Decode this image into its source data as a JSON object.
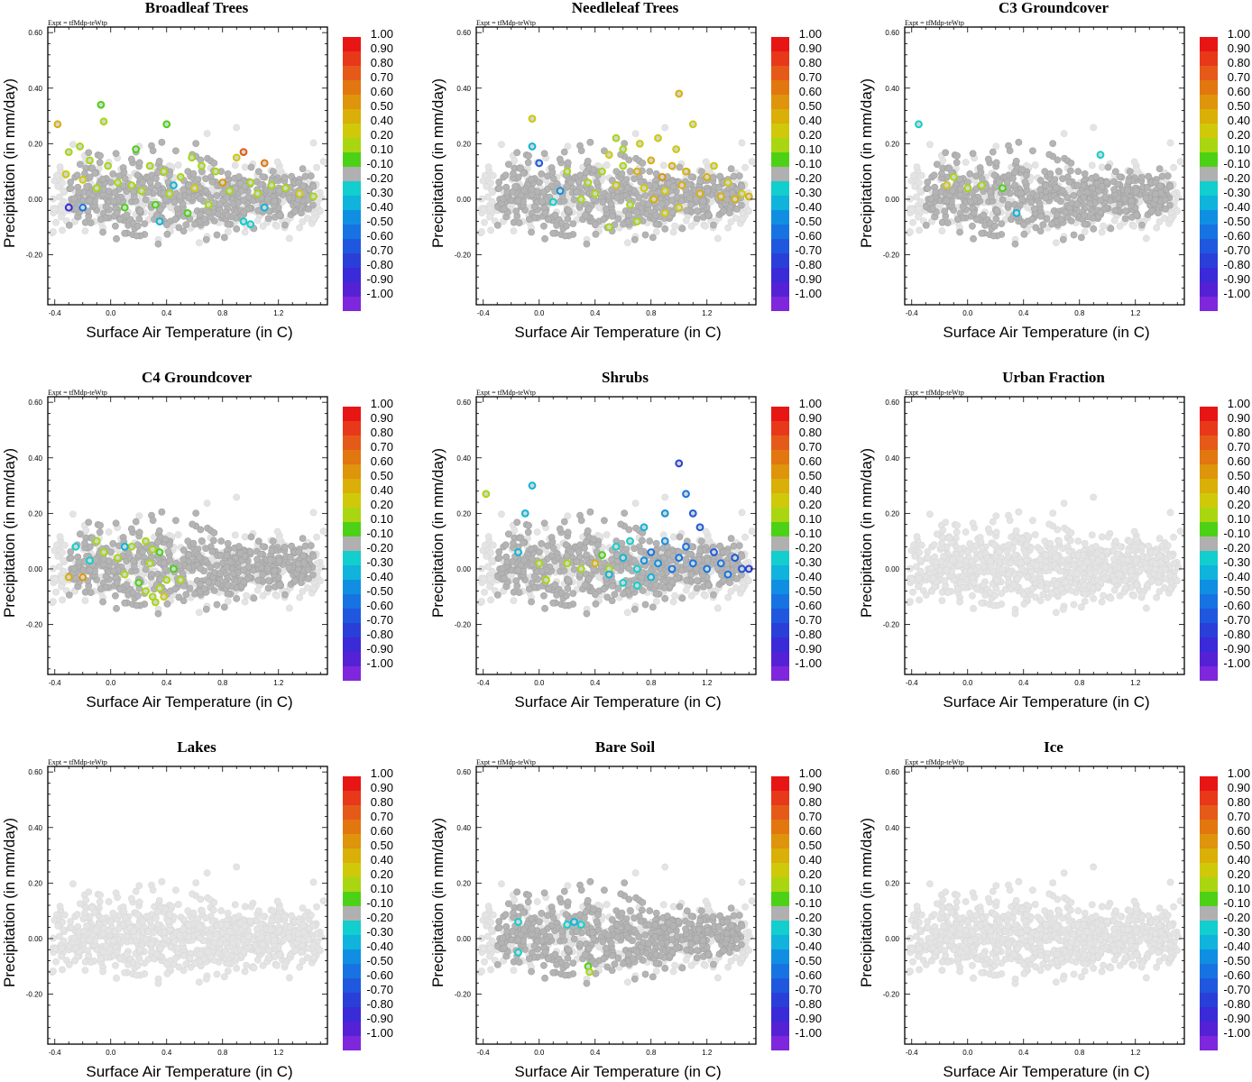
{
  "figure": {
    "expt_label": "Expt = tfMdp-teWtp",
    "xlabel": "Surface Air Temperature (in C)",
    "ylabel": "Precipitation (in mm/day)"
  },
  "colorbar": {
    "labels": [
      "1.00",
      "0.90",
      "0.80",
      "0.70",
      "0.60",
      "0.50",
      "0.40",
      "0.20",
      "0.10",
      "-0.10",
      "-0.20",
      "-0.30",
      "-0.40",
      "-0.50",
      "-0.60",
      "-0.70",
      "-0.80",
      "-0.90",
      "-1.00"
    ],
    "colors": [
      "#e81515",
      "#e8381a",
      "#e55a18",
      "#e2760f",
      "#de940b",
      "#d9af08",
      "#cfc90a",
      "#a9d611",
      "#4dd116",
      "#b0b0b0",
      "#12cece",
      "#0fb3dc",
      "#108fe2",
      "#1873e2",
      "#1f58de",
      "#2a3fd8",
      "#3a2ad8",
      "#5521d4",
      "#7e27dc"
    ]
  },
  "chart_data": [
    {
      "type": "scatter",
      "title": "Broadleaf Trees",
      "xlabel": "Surface Air Temperature (in C)",
      "ylabel": "Precipitation (in mm/day)",
      "xlim": [
        -0.45,
        1.55
      ],
      "ylim": [
        -0.38,
        0.62
      ],
      "xticks": [
        "-0.4",
        "0.0",
        "0.4",
        "0.8",
        "1.2"
      ],
      "yticks": [
        "0.60",
        "0.40",
        "0.20",
        "0.00",
        "-0.20"
      ],
      "colored_points": [
        [
          -0.38,
          0.27,
          0.45
        ],
        [
          -0.32,
          0.09,
          0.3
        ],
        [
          -0.3,
          0.17,
          0.15
        ],
        [
          -0.22,
          0.19,
          0.2
        ],
        [
          -0.2,
          0.07,
          0.3
        ],
        [
          -0.15,
          0.14,
          0.2
        ],
        [
          -0.1,
          0.04,
          0.15
        ],
        [
          -0.07,
          0.34,
          0.1
        ],
        [
          -0.05,
          0.28,
          0.25
        ],
        [
          -0.02,
          0.12,
          0.15
        ],
        [
          0.05,
          0.06,
          0.2
        ],
        [
          0.1,
          -0.03,
          0.1
        ],
        [
          0.15,
          0.05,
          0.2
        ],
        [
          0.18,
          0.18,
          0.1
        ],
        [
          0.22,
          0.03,
          0.15
        ],
        [
          0.28,
          0.12,
          0.2
        ],
        [
          0.32,
          -0.02,
          0.1
        ],
        [
          0.38,
          0.1,
          0.2
        ],
        [
          0.4,
          0.27,
          0.1
        ],
        [
          0.42,
          0.02,
          0.15
        ],
        [
          0.5,
          0.08,
          0.2
        ],
        [
          0.55,
          -0.05,
          0.1
        ],
        [
          0.58,
          0.15,
          0.2
        ],
        [
          0.6,
          0.04,
          0.3
        ],
        [
          0.65,
          0.12,
          0.15
        ],
        [
          0.7,
          -0.02,
          0.2
        ],
        [
          0.75,
          0.1,
          0.25
        ],
        [
          0.8,
          0.06,
          0.6
        ],
        [
          0.85,
          0.03,
          0.2
        ],
        [
          0.9,
          0.15,
          0.3
        ],
        [
          0.95,
          0.17,
          0.75
        ],
        [
          1.0,
          0.06,
          0.2
        ],
        [
          1.05,
          0.02,
          0.15
        ],
        [
          1.1,
          0.13,
          0.65
        ],
        [
          1.15,
          0.05,
          0.2
        ],
        [
          1.25,
          0.04,
          0.15
        ],
        [
          1.35,
          0.02,
          0.3
        ],
        [
          1.45,
          0.01,
          0.25
        ],
        [
          -0.3,
          -0.03,
          -0.8
        ],
        [
          -0.2,
          -0.03,
          -0.5
        ],
        [
          0.35,
          -0.08,
          -0.3
        ],
        [
          0.95,
          -0.08,
          -0.25
        ],
        [
          1.0,
          -0.09,
          -0.2
        ],
        [
          1.1,
          -0.03,
          -0.3
        ],
        [
          0.45,
          0.05,
          -0.3
        ]
      ]
    },
    {
      "type": "scatter",
      "title": "Needleleaf Trees",
      "xlabel": "Surface Air Temperature (in C)",
      "ylabel": "Precipitation (in mm/day)",
      "xlim": [
        -0.45,
        1.55
      ],
      "ylim": [
        -0.38,
        0.62
      ],
      "xticks": [
        "-0.4",
        "0.0",
        "0.4",
        "0.8",
        "1.2"
      ],
      "yticks": [
        "0.60",
        "0.40",
        "0.20",
        "0.00",
        "-0.20"
      ],
      "colored_points": [
        [
          -0.05,
          0.29,
          0.4
        ],
        [
          0.35,
          0.06,
          0.2
        ],
        [
          0.4,
          0.02,
          0.25
        ],
        [
          0.45,
          0.1,
          0.2
        ],
        [
          0.5,
          0.16,
          0.3
        ],
        [
          0.55,
          0.05,
          0.35
        ],
        [
          0.6,
          0.12,
          0.25
        ],
        [
          0.65,
          -0.02,
          0.2
        ],
        [
          0.7,
          0.1,
          0.45
        ],
        [
          0.72,
          0.2,
          0.3
        ],
        [
          0.75,
          0.04,
          0.4
        ],
        [
          0.8,
          0.14,
          0.5
        ],
        [
          0.82,
          0.0,
          0.45
        ],
        [
          0.85,
          0.22,
          0.3
        ],
        [
          0.88,
          0.08,
          0.55
        ],
        [
          0.9,
          0.03,
          0.4
        ],
        [
          0.95,
          0.12,
          0.5
        ],
        [
          0.98,
          0.18,
          0.35
        ],
        [
          1.0,
          0.38,
          0.5
        ],
        [
          1.02,
          0.05,
          0.5
        ],
        [
          1.05,
          0.1,
          0.45
        ],
        [
          1.1,
          0.27,
          0.4
        ],
        [
          1.15,
          0.02,
          0.45
        ],
        [
          1.2,
          0.08,
          0.5
        ],
        [
          1.25,
          0.12,
          0.4
        ],
        [
          1.3,
          0.01,
          0.45
        ],
        [
          1.35,
          0.06,
          0.4
        ],
        [
          1.4,
          0.0,
          0.45
        ],
        [
          1.45,
          0.02,
          0.4
        ],
        [
          1.5,
          0.01,
          0.45
        ],
        [
          0.3,
          0.0,
          0.2
        ],
        [
          0.5,
          -0.1,
          0.15
        ],
        [
          0.6,
          0.18,
          0.15
        ],
        [
          0.7,
          -0.08,
          0.2
        ],
        [
          0.9,
          -0.05,
          0.3
        ],
        [
          1.0,
          -0.03,
          0.35
        ],
        [
          0.2,
          0.1,
          0.15
        ],
        [
          0.55,
          0.22,
          0.2
        ],
        [
          -0.05,
          0.19,
          -0.3
        ],
        [
          0.1,
          -0.01,
          -0.2
        ],
        [
          0.0,
          0.13,
          -0.6
        ],
        [
          0.15,
          0.03,
          -0.4
        ]
      ]
    },
    {
      "type": "scatter",
      "title": "C3 Groundcover",
      "xlabel": "Surface Air Temperature (in C)",
      "ylabel": "Precipitation (in mm/day)",
      "xlim": [
        -0.45,
        1.55
      ],
      "ylim": [
        -0.38,
        0.62
      ],
      "xticks": [
        "-0.4",
        "0.0",
        "0.4",
        "0.8",
        "1.2"
      ],
      "yticks": [
        "0.60",
        "0.40",
        "0.20",
        "0.00",
        "-0.20"
      ],
      "colored_points": [
        [
          -0.15,
          0.05,
          0.3
        ],
        [
          -0.1,
          0.08,
          0.2
        ],
        [
          0.0,
          0.04,
          0.15
        ],
        [
          0.1,
          0.05,
          0.2
        ],
        [
          0.25,
          0.04,
          0.1
        ],
        [
          0.35,
          -0.05,
          -0.3
        ],
        [
          -0.35,
          0.27,
          -0.2
        ],
        [
          0.95,
          0.16,
          -0.2
        ]
      ]
    },
    {
      "type": "scatter",
      "title": "C4 Groundcover",
      "xlabel": "Surface Air Temperature (in C)",
      "ylabel": "Precipitation (in mm/day)",
      "xlim": [
        -0.45,
        1.55
      ],
      "ylim": [
        -0.38,
        0.62
      ],
      "xticks": [
        "-0.4",
        "0.0",
        "0.4",
        "0.8",
        "1.2"
      ],
      "yticks": [
        "0.60",
        "0.40",
        "0.20",
        "0.00",
        "-0.20"
      ],
      "colored_points": [
        [
          -0.3,
          -0.03,
          0.5
        ],
        [
          -0.2,
          -0.03,
          0.6
        ],
        [
          -0.1,
          0.1,
          0.2
        ],
        [
          -0.05,
          0.06,
          0.15
        ],
        [
          0.05,
          0.04,
          0.2
        ],
        [
          0.1,
          -0.02,
          0.15
        ],
        [
          0.15,
          0.08,
          0.2
        ],
        [
          0.2,
          -0.05,
          0.1
        ],
        [
          0.25,
          -0.08,
          0.2
        ],
        [
          0.28,
          0.02,
          0.15
        ],
        [
          0.3,
          -0.1,
          0.2
        ],
        [
          0.32,
          -0.12,
          0.25
        ],
        [
          0.35,
          -0.07,
          0.2
        ],
        [
          0.38,
          -0.1,
          0.3
        ],
        [
          0.4,
          -0.04,
          0.15
        ],
        [
          0.45,
          0.0,
          0.1
        ],
        [
          0.5,
          -0.04,
          0.15
        ],
        [
          0.25,
          0.1,
          0.2
        ],
        [
          0.3,
          0.07,
          0.25
        ],
        [
          0.35,
          0.06,
          0.1
        ],
        [
          -0.25,
          0.08,
          -0.2
        ],
        [
          -0.15,
          0.03,
          -0.2
        ],
        [
          0.1,
          0.08,
          -0.3
        ]
      ]
    },
    {
      "type": "scatter",
      "title": "Shrubs",
      "xlabel": "Surface Air Temperature (in C)",
      "ylabel": "Precipitation (in mm/day)",
      "xlim": [
        -0.45,
        1.55
      ],
      "ylim": [
        -0.38,
        0.62
      ],
      "xticks": [
        "-0.4",
        "0.0",
        "0.4",
        "0.8",
        "1.2"
      ],
      "yticks": [
        "0.60",
        "0.40",
        "0.20",
        "0.00",
        "-0.20"
      ],
      "colored_points": [
        [
          -0.38,
          0.27,
          0.2
        ],
        [
          -0.1,
          0.2,
          -0.3
        ],
        [
          -0.15,
          0.06,
          -0.3
        ],
        [
          -0.05,
          0.3,
          -0.3
        ],
        [
          0.0,
          0.02,
          0.15
        ],
        [
          0.05,
          -0.04,
          0.2
        ],
        [
          0.2,
          0.02,
          0.2
        ],
        [
          0.3,
          0.0,
          0.15
        ],
        [
          0.4,
          0.02,
          0.5
        ],
        [
          0.5,
          0.0,
          0.15
        ],
        [
          0.55,
          0.08,
          -0.2
        ],
        [
          0.6,
          0.04,
          -0.3
        ],
        [
          0.65,
          0.1,
          -0.25
        ],
        [
          0.7,
          0.0,
          -0.2
        ],
        [
          0.75,
          0.15,
          -0.3
        ],
        [
          0.8,
          0.06,
          -0.5
        ],
        [
          0.85,
          0.02,
          -0.4
        ],
        [
          0.9,
          0.1,
          -0.45
        ],
        [
          0.95,
          0.0,
          -0.5
        ],
        [
          1.0,
          0.38,
          -0.7
        ],
        [
          1.0,
          0.04,
          -0.5
        ],
        [
          1.05,
          0.08,
          -0.55
        ],
        [
          1.1,
          0.02,
          -0.5
        ],
        [
          1.15,
          0.15,
          -0.6
        ],
        [
          1.2,
          0.0,
          -0.5
        ],
        [
          1.25,
          0.06,
          -0.6
        ],
        [
          1.3,
          0.02,
          -0.55
        ],
        [
          1.35,
          -0.02,
          -0.5
        ],
        [
          1.4,
          0.04,
          -0.6
        ],
        [
          1.45,
          0.0,
          -0.65
        ],
        [
          1.5,
          0.0,
          -0.7
        ],
        [
          1.1,
          0.2,
          -0.65
        ],
        [
          1.05,
          0.27,
          -0.5
        ],
        [
          0.9,
          0.2,
          -0.4
        ],
        [
          0.8,
          -0.03,
          -0.3
        ],
        [
          0.7,
          -0.06,
          -0.25
        ],
        [
          0.6,
          -0.05,
          -0.2
        ],
        [
          0.5,
          -0.02,
          -0.3
        ],
        [
          0.45,
          0.05,
          0.1
        ],
        [
          0.75,
          0.03,
          -0.45
        ]
      ]
    },
    {
      "type": "scatter",
      "title": "Urban Fraction",
      "xlabel": "Surface Air Temperature (in C)",
      "ylabel": "Precipitation (in mm/day)",
      "xlim": [
        -0.45,
        1.55
      ],
      "ylim": [
        -0.38,
        0.62
      ],
      "xticks": [
        "-0.4",
        "0.0",
        "0.4",
        "0.8",
        "1.2"
      ],
      "yticks": [
        "0.60",
        "0.40",
        "0.20",
        "0.00",
        "-0.20"
      ],
      "colored_points": []
    },
    {
      "type": "scatter",
      "title": "Lakes",
      "xlabel": "Surface Air Temperature (in C)",
      "ylabel": "Precipitation (in mm/day)",
      "xlim": [
        -0.45,
        1.55
      ],
      "ylim": [
        -0.38,
        0.62
      ],
      "xticks": [
        "-0.4",
        "0.0",
        "0.4",
        "0.8",
        "1.2"
      ],
      "yticks": [
        "0.60",
        "0.40",
        "0.20",
        "0.00",
        "-0.20"
      ],
      "colored_points": []
    },
    {
      "type": "scatter",
      "title": "Bare Soil",
      "xlabel": "Surface Air Temperature (in C)",
      "ylabel": "Precipitation (in mm/day)",
      "xlim": [
        -0.45,
        1.55
      ],
      "ylim": [
        -0.38,
        0.62
      ],
      "xticks": [
        "-0.4",
        "0.0",
        "0.4",
        "0.8",
        "1.2"
      ],
      "yticks": [
        "0.60",
        "0.40",
        "0.20",
        "0.00",
        "-0.20"
      ],
      "colored_points": [
        [
          -0.15,
          0.06,
          -0.2
        ],
        [
          -0.15,
          -0.05,
          -0.25
        ],
        [
          0.2,
          0.05,
          -0.2
        ],
        [
          0.25,
          0.06,
          -0.3
        ],
        [
          0.3,
          0.05,
          -0.2
        ],
        [
          0.35,
          -0.1,
          0.1
        ],
        [
          0.36,
          -0.12,
          0.15
        ]
      ]
    },
    {
      "type": "scatter",
      "title": "Ice",
      "xlabel": "Surface Air Temperature (in C)",
      "ylabel": "Precipitation (in mm/day)",
      "xlim": [
        -0.45,
        1.55
      ],
      "ylim": [
        -0.38,
        0.62
      ],
      "xticks": [
        "-0.4",
        "0.0",
        "0.4",
        "0.8",
        "1.2"
      ],
      "yticks": [
        "0.60",
        "0.40",
        "0.20",
        "0.00",
        "-0.20"
      ],
      "colored_points": []
    }
  ]
}
